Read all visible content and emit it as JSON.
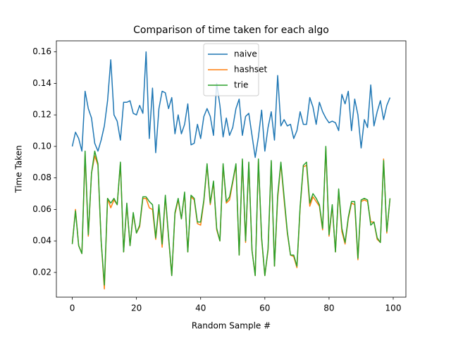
{
  "chart_data": {
    "type": "line",
    "title": "Comparison of time taken for each algo",
    "x_label": "Random Sample #",
    "y_label": "Time Taken",
    "xlim": [
      -4.95,
      103.95
    ],
    "ylim": [
      0.0043,
      0.167
    ],
    "xticks": [
      0,
      20,
      40,
      60,
      80,
      100
    ],
    "yticks": [
      {
        "value": 0.02,
        "label": "0.02"
      },
      {
        "value": 0.04,
        "label": "0.04"
      },
      {
        "value": 0.06,
        "label": "0.06"
      },
      {
        "value": 0.08,
        "label": "0.08"
      },
      {
        "value": 0.1,
        "label": "0.10"
      },
      {
        "value": 0.12,
        "label": "0.12"
      },
      {
        "value": 0.14,
        "label": "0.14"
      },
      {
        "value": 0.16,
        "label": "0.16"
      }
    ],
    "legend": "upper center",
    "grid": false,
    "series": [
      {
        "name": "naive",
        "color": "#1f77b4",
        "values": [
          0.1,
          0.109,
          0.105,
          0.097,
          0.135,
          0.124,
          0.118,
          0.102,
          0.097,
          0.104,
          0.113,
          0.129,
          0.155,
          0.12,
          0.116,
          0.104,
          0.128,
          0.128,
          0.129,
          0.121,
          0.12,
          0.126,
          0.121,
          0.16,
          0.105,
          0.137,
          0.096,
          0.124,
          0.135,
          0.134,
          0.124,
          0.131,
          0.108,
          0.12,
          0.108,
          0.114,
          0.127,
          0.101,
          0.102,
          0.114,
          0.105,
          0.119,
          0.124,
          0.119,
          0.107,
          0.14,
          0.126,
          0.106,
          0.118,
          0.107,
          0.112,
          0.124,
          0.13,
          0.107,
          0.119,
          0.121,
          0.107,
          0.093,
          0.106,
          0.123,
          0.097,
          0.112,
          0.122,
          0.104,
          0.145,
          0.113,
          0.117,
          0.113,
          0.114,
          0.105,
          0.11,
          0.122,
          0.114,
          0.114,
          0.131,
          0.125,
          0.114,
          0.128,
          0.122,
          0.118,
          0.115,
          0.116,
          0.115,
          0.11,
          0.133,
          0.127,
          0.135,
          0.11,
          0.13,
          0.12,
          0.099,
          0.117,
          0.112,
          0.139,
          0.113,
          0.122,
          0.129,
          0.117,
          0.126,
          0.131
        ]
      },
      {
        "name": "hashset",
        "color": "#ff7f0e",
        "values": [
          0.038,
          0.06,
          0.037,
          0.032,
          0.095,
          0.043,
          0.083,
          0.094,
          0.088,
          0.04,
          0.0095,
          0.067,
          0.061,
          0.066,
          0.063,
          0.089,
          0.033,
          0.063,
          0.037,
          0.057,
          0.045,
          0.049,
          0.067,
          0.067,
          0.061,
          0.06,
          0.041,
          0.061,
          0.036,
          0.068,
          0.042,
          0.018,
          0.057,
          0.066,
          0.054,
          0.07,
          0.033,
          0.068,
          0.066,
          0.051,
          0.05,
          0.065,
          0.088,
          0.063,
          0.077,
          0.047,
          0.04,
          0.088,
          0.064,
          0.066,
          0.077,
          0.088,
          0.031,
          0.091,
          0.039,
          0.089,
          0.034,
          0.018,
          0.091,
          0.041,
          0.018,
          0.034,
          0.09,
          0.024,
          0.067,
          0.089,
          0.066,
          0.045,
          0.031,
          0.03,
          0.023,
          0.061,
          0.087,
          0.088,
          0.062,
          0.068,
          0.065,
          0.062,
          0.047,
          0.099,
          0.043,
          0.062,
          0.033,
          0.072,
          0.046,
          0.038,
          0.054,
          0.064,
          0.063,
          0.028,
          0.065,
          0.066,
          0.065,
          0.052,
          0.052,
          0.041,
          0.039,
          0.092,
          0.045,
          0.067
        ]
      },
      {
        "name": "trie",
        "color": "#2ca02c",
        "values": [
          0.038,
          0.059,
          0.037,
          0.032,
          0.097,
          0.044,
          0.083,
          0.097,
          0.089,
          0.04,
          0.012,
          0.067,
          0.064,
          0.067,
          0.063,
          0.09,
          0.033,
          0.064,
          0.037,
          0.058,
          0.045,
          0.05,
          0.068,
          0.068,
          0.065,
          0.063,
          0.042,
          0.063,
          0.038,
          0.069,
          0.043,
          0.018,
          0.058,
          0.067,
          0.054,
          0.071,
          0.033,
          0.069,
          0.067,
          0.052,
          0.052,
          0.066,
          0.089,
          0.064,
          0.078,
          0.048,
          0.04,
          0.089,
          0.065,
          0.068,
          0.078,
          0.089,
          0.031,
          0.092,
          0.04,
          0.09,
          0.034,
          0.018,
          0.092,
          0.042,
          0.018,
          0.035,
          0.091,
          0.024,
          0.069,
          0.09,
          0.068,
          0.046,
          0.031,
          0.031,
          0.024,
          0.062,
          0.088,
          0.09,
          0.064,
          0.07,
          0.067,
          0.063,
          0.048,
          0.1,
          0.044,
          0.063,
          0.033,
          0.073,
          0.048,
          0.039,
          0.055,
          0.065,
          0.065,
          0.029,
          0.066,
          0.067,
          0.066,
          0.05,
          0.052,
          0.042,
          0.039,
          0.091,
          0.046,
          0.067
        ]
      }
    ]
  }
}
